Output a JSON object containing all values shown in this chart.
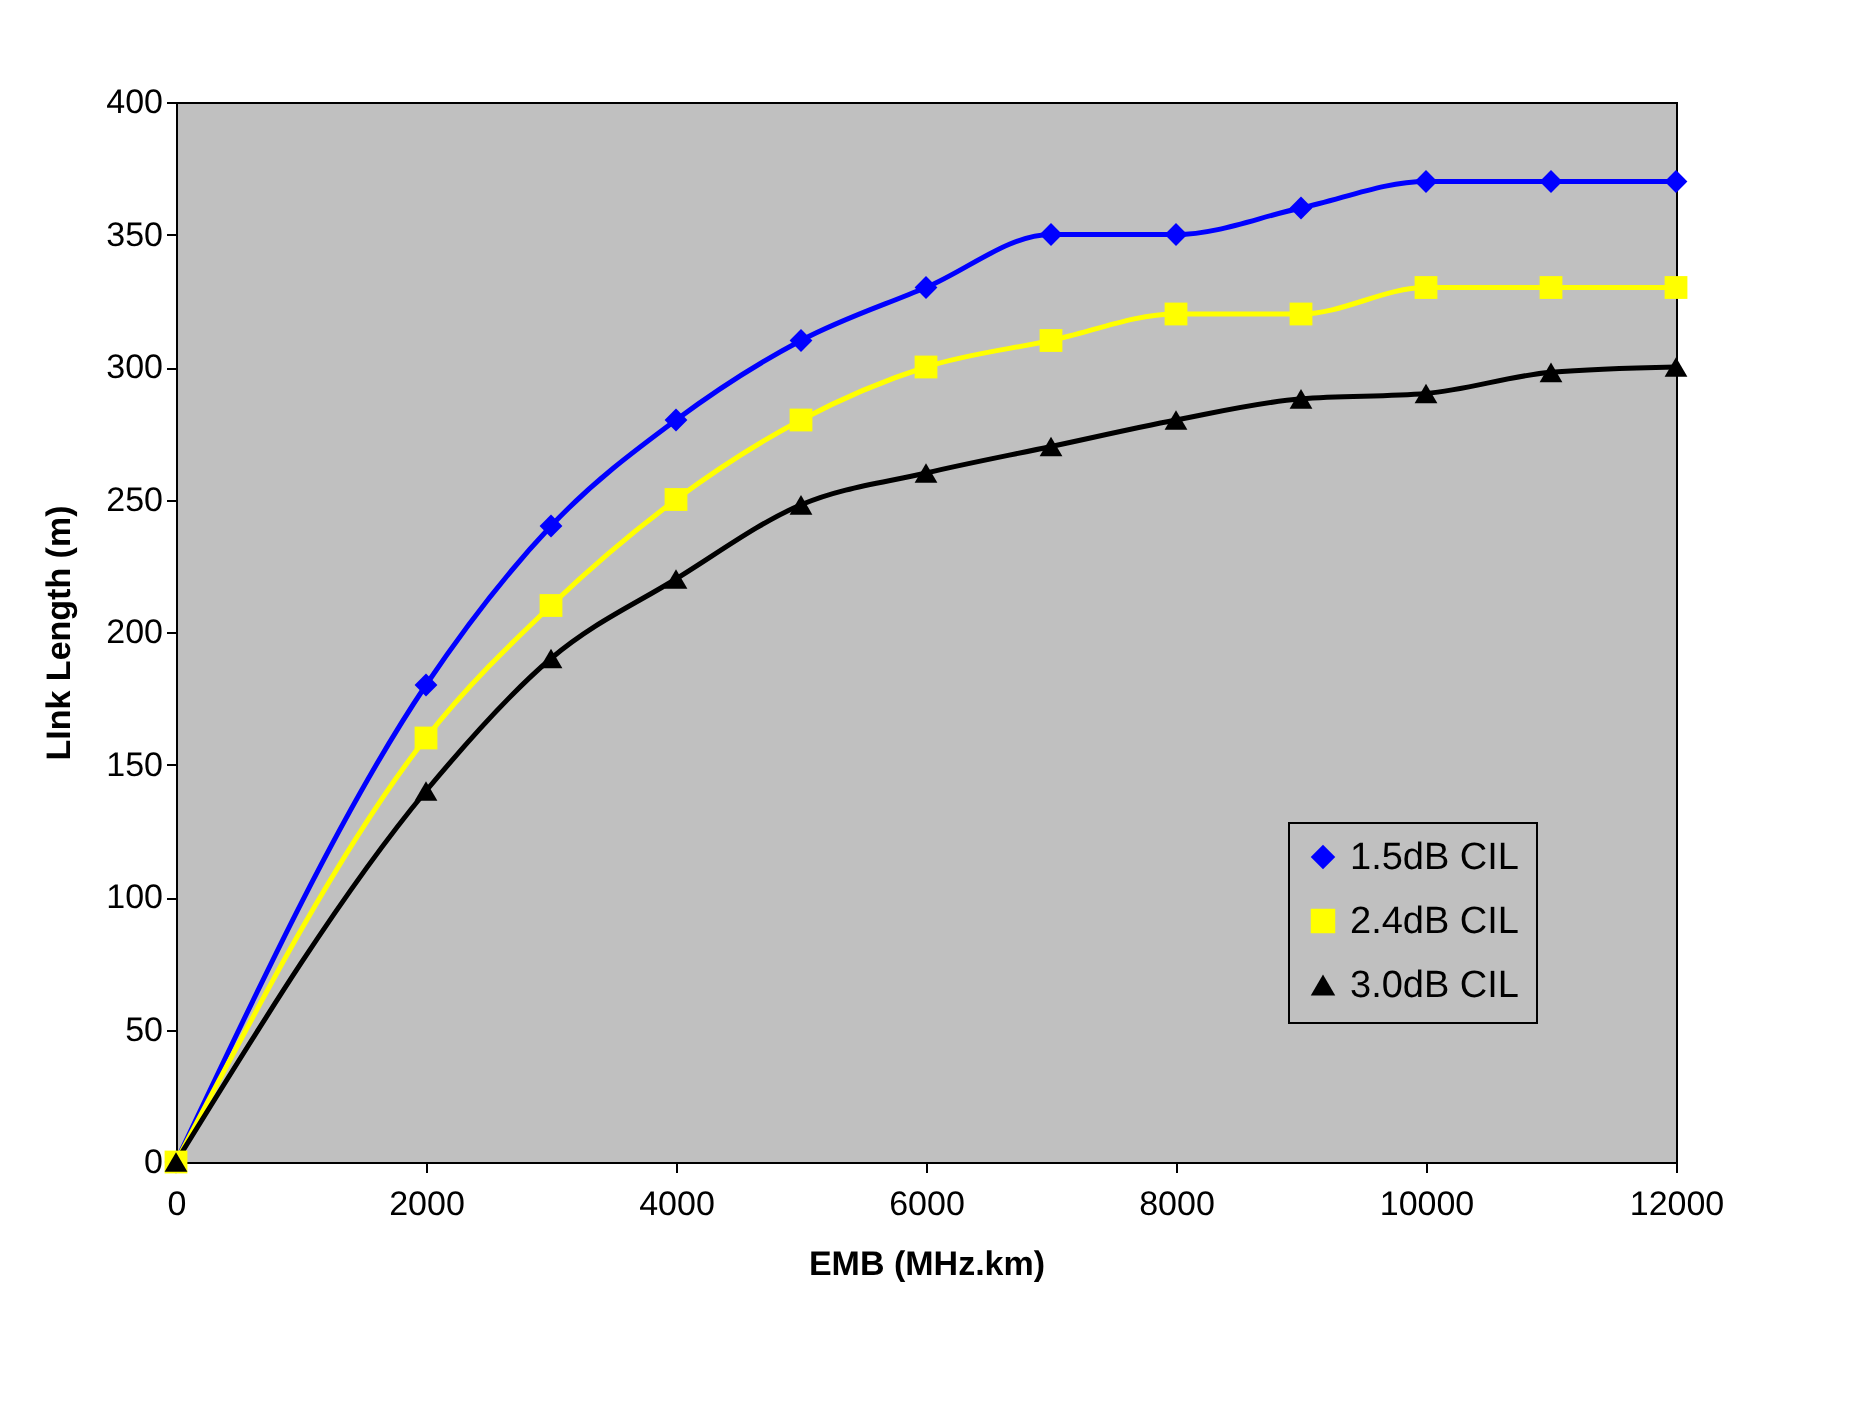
{
  "chart_data": {
    "type": "line",
    "xlabel": "EMB (MHz.km)",
    "ylabel": "LInk Length (m)",
    "x": [
      0,
      2000,
      3000,
      4000,
      5000,
      6000,
      7000,
      8000,
      9000,
      10000,
      11000,
      12000
    ],
    "series": [
      {
        "name": "1.5dB CIL",
        "color": "#0000ff",
        "marker": "diamond",
        "values": [
          0,
          180,
          240,
          280,
          310,
          330,
          350,
          350,
          360,
          370,
          370,
          370
        ]
      },
      {
        "name": "2.4dB CIL",
        "color": "#ffff00",
        "marker": "square",
        "values": [
          0,
          160,
          210,
          250,
          280,
          300,
          310,
          320,
          320,
          330,
          330,
          330
        ]
      },
      {
        "name": "3.0dB CIL",
        "color": "#000000",
        "marker": "triangle",
        "values": [
          0,
          140,
          190,
          220,
          248,
          260,
          270,
          280,
          288,
          290,
          298,
          300
        ]
      }
    ],
    "xlim": [
      0,
      12000
    ],
    "xticks": [
      0,
      2000,
      4000,
      6000,
      8000,
      10000,
      12000
    ],
    "ylim": [
      0,
      400
    ],
    "yticks": [
      0,
      50,
      100,
      150,
      200,
      250,
      300,
      350,
      400
    ],
    "grid": false,
    "legend": "bottom right",
    "line_style": "solid"
  }
}
